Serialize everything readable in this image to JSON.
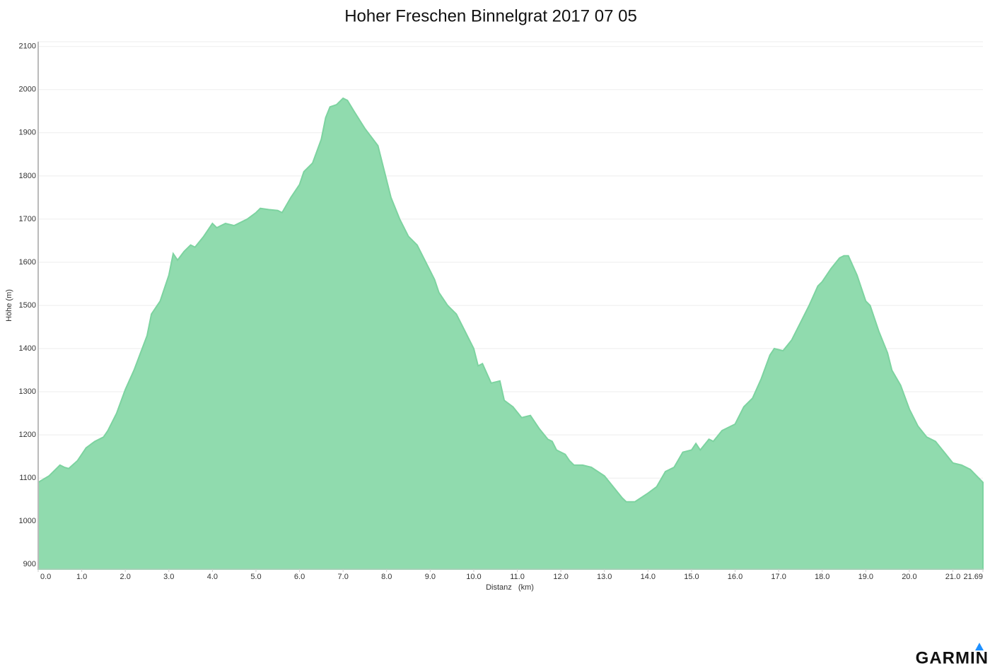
{
  "chart_data": {
    "type": "area",
    "title": "Hoher Freschen Binnelgrat 2017 07 05",
    "xlabel": "Distanz   (km)",
    "ylabel": "Höhe (m)",
    "brand": "GARMIN",
    "color": "#90dbae",
    "line_color": "#7dd3a0",
    "grid": true,
    "x": [
      0,
      0.25,
      0.4,
      0.5,
      0.6,
      0.7,
      0.9,
      1.1,
      1.3,
      1.5,
      1.6,
      1.8,
      2.0,
      2.2,
      2.35,
      2.5,
      2.6,
      2.7,
      2.8,
      2.9,
      3.0,
      3.1,
      3.2,
      3.35,
      3.5,
      3.6,
      3.8,
      3.9,
      4.0,
      4.1,
      4.2,
      4.3,
      4.5,
      4.8,
      5.0,
      5.1,
      5.3,
      5.5,
      5.6,
      5.8,
      6.0,
      6.1,
      6.3,
      6.5,
      6.6,
      6.7,
      6.85,
      7.0,
      7.1,
      7.25,
      7.5,
      7.8,
      7.95,
      8.1,
      8.3,
      8.5,
      8.7,
      8.9,
      9.1,
      9.2,
      9.4,
      9.6,
      9.8,
      10.0,
      10.1,
      10.2,
      10.4,
      10.6,
      10.7,
      10.9,
      11.1,
      11.3,
      11.5,
      11.7,
      11.8,
      11.9,
      12.1,
      12.2,
      12.3,
      12.5,
      12.7,
      13.0,
      13.2,
      13.4,
      13.5,
      13.7,
      14.0,
      14.2,
      14.4,
      14.6,
      14.8,
      15.0,
      15.1,
      15.2,
      15.4,
      15.5,
      15.7,
      16.0,
      16.2,
      16.4,
      16.6,
      16.8,
      16.9,
      17.1,
      17.3,
      17.5,
      17.7,
      17.9,
      18.0,
      18.2,
      18.4,
      18.5,
      18.6,
      18.8,
      18.9,
      19.0,
      19.1,
      19.3,
      19.5,
      19.6,
      19.8,
      20.0,
      20.2,
      20.4,
      20.6,
      20.8,
      21.0,
      21.2,
      21.4,
      21.69
    ],
    "values": [
      1090,
      1105,
      1120,
      1130,
      1125,
      1122,
      1140,
      1170,
      1185,
      1195,
      1210,
      1250,
      1305,
      1350,
      1390,
      1430,
      1480,
      1495,
      1510,
      1540,
      1570,
      1620,
      1605,
      1625,
      1640,
      1635,
      1660,
      1675,
      1690,
      1680,
      1685,
      1690,
      1685,
      1700,
      1715,
      1725,
      1722,
      1720,
      1715,
      1750,
      1780,
      1810,
      1830,
      1885,
      1935,
      1960,
      1965,
      1980,
      1975,
      1950,
      1910,
      1870,
      1810,
      1750,
      1700,
      1660,
      1640,
      1600,
      1560,
      1530,
      1500,
      1480,
      1440,
      1400,
      1360,
      1365,
      1320,
      1325,
      1280,
      1265,
      1240,
      1245,
      1215,
      1190,
      1185,
      1165,
      1155,
      1140,
      1130,
      1130,
      1125,
      1105,
      1080,
      1055,
      1045,
      1045,
      1065,
      1080,
      1115,
      1125,
      1160,
      1165,
      1180,
      1165,
      1190,
      1185,
      1210,
      1225,
      1265,
      1285,
      1330,
      1385,
      1400,
      1395,
      1420,
      1460,
      1500,
      1545,
      1555,
      1585,
      1610,
      1615,
      1615,
      1570,
      1540,
      1510,
      1500,
      1440,
      1390,
      1350,
      1315,
      1260,
      1220,
      1195,
      1185,
      1160,
      1135,
      1130,
      1120,
      1090
    ],
    "xlim": [
      0,
      21.69
    ],
    "ylim": [
      889,
      2111
    ],
    "xticks": [
      {
        "value": 0,
        "label": "0.0"
      },
      {
        "value": 1,
        "label": "1.0"
      },
      {
        "value": 2,
        "label": "2.0"
      },
      {
        "value": 3,
        "label": "3.0"
      },
      {
        "value": 4,
        "label": "4.0"
      },
      {
        "value": 5,
        "label": "5.0"
      },
      {
        "value": 6,
        "label": "6.0"
      },
      {
        "value": 7,
        "label": "7.0"
      },
      {
        "value": 8,
        "label": "8.0"
      },
      {
        "value": 9,
        "label": "9.0"
      },
      {
        "value": 10,
        "label": "10.0"
      },
      {
        "value": 11,
        "label": "11.0"
      },
      {
        "value": 12,
        "label": "12.0"
      },
      {
        "value": 13,
        "label": "13.0"
      },
      {
        "value": 14,
        "label": "14.0"
      },
      {
        "value": 15,
        "label": "15.0"
      },
      {
        "value": 16,
        "label": "16.0"
      },
      {
        "value": 17,
        "label": "17.0"
      },
      {
        "value": 18,
        "label": "18.0"
      },
      {
        "value": 19,
        "label": "19.0"
      },
      {
        "value": 20,
        "label": "20.0"
      },
      {
        "value": 21,
        "label": "21.0"
      },
      21.69
    ],
    "yticks": [
      900,
      1000,
      1100,
      1200,
      1300,
      1400,
      1500,
      1600,
      1700,
      1800,
      1900,
      2000,
      2100
    ]
  }
}
